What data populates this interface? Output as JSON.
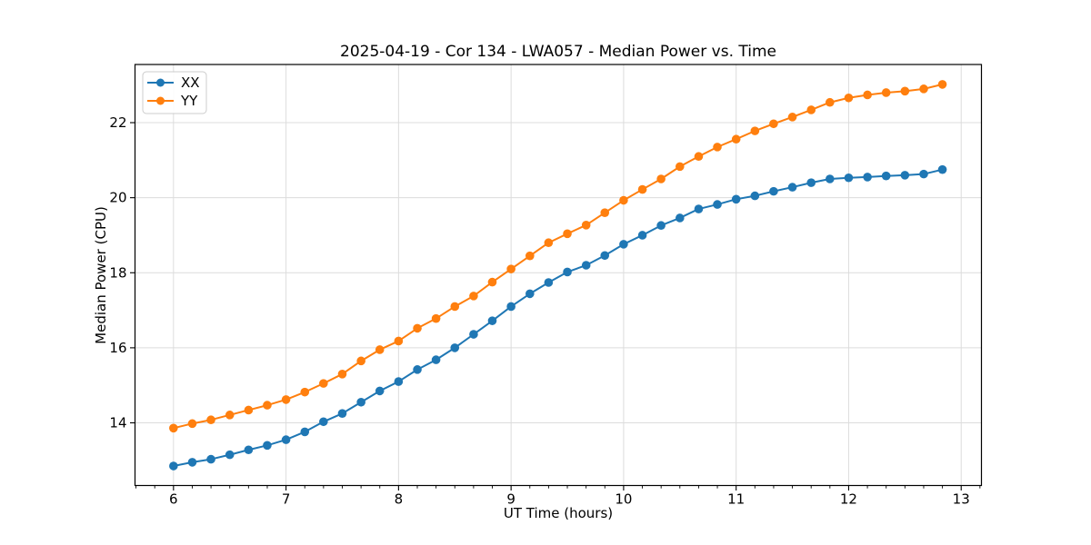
{
  "chart_data": {
    "type": "line",
    "title": "2025-04-19 - Cor 134 - LWA057 - Median Power vs. Time",
    "xlabel": "UT Time (hours)",
    "ylabel": "Median Power (CPU)",
    "xlim": [
      5.658,
      13.18
    ],
    "ylim": [
      12.33,
      23.55
    ],
    "xticks": [
      6,
      7,
      8,
      9,
      10,
      11,
      12,
      13
    ],
    "yticks": [
      14,
      16,
      18,
      20,
      22
    ],
    "x_minor_step": 0.166667,
    "grid": true,
    "legend_position": "upper-left",
    "x": [
      6.0,
      6.167,
      6.333,
      6.5,
      6.667,
      6.833,
      7.0,
      7.167,
      7.333,
      7.5,
      7.667,
      7.833,
      8.0,
      8.167,
      8.333,
      8.5,
      8.667,
      8.833,
      9.0,
      9.167,
      9.333,
      9.5,
      9.667,
      9.833,
      10.0,
      10.167,
      10.333,
      10.5,
      10.667,
      10.833,
      11.0,
      11.167,
      11.333,
      11.5,
      11.667,
      11.833,
      12.0,
      12.167,
      12.333,
      12.5,
      12.667,
      12.833
    ],
    "series": [
      {
        "name": "XX",
        "color": "#1f77b4",
        "values": [
          12.85,
          12.95,
          13.03,
          13.15,
          13.28,
          13.4,
          13.55,
          13.76,
          14.03,
          14.25,
          14.55,
          14.85,
          15.1,
          15.42,
          15.68,
          16.0,
          16.36,
          16.72,
          17.1,
          17.44,
          17.74,
          18.02,
          18.2,
          18.46,
          18.76,
          19.0,
          19.26,
          19.46,
          19.7,
          19.82,
          19.96,
          20.05,
          20.17,
          20.28,
          20.4,
          20.5,
          20.53,
          20.55,
          20.58,
          20.6,
          20.63,
          20.75
        ]
      },
      {
        "name": "YY",
        "color": "#ff7f0e",
        "values": [
          13.86,
          13.98,
          14.08,
          14.21,
          14.34,
          14.47,
          14.62,
          14.82,
          15.05,
          15.3,
          15.65,
          15.95,
          16.18,
          16.52,
          16.78,
          17.1,
          17.38,
          17.75,
          18.1,
          18.45,
          18.8,
          19.04,
          19.27,
          19.6,
          19.93,
          20.22,
          20.5,
          20.83,
          21.1,
          21.35,
          21.56,
          21.78,
          21.97,
          22.15,
          22.34,
          22.54,
          22.66,
          22.74,
          22.8,
          22.84,
          22.9,
          23.02
        ]
      }
    ],
    "style": {
      "grid_color": "#dcdcdc",
      "spine_color": "#000000",
      "tick_color": "#000000",
      "legend_border": "#cccccc",
      "legend_bg": "#ffffff"
    }
  }
}
